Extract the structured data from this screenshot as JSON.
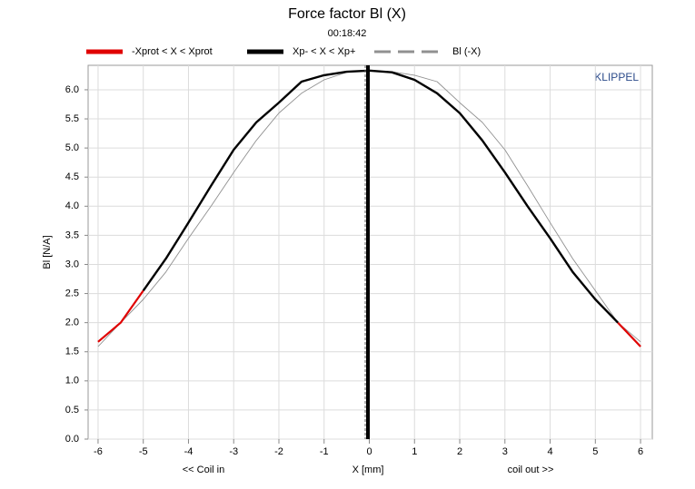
{
  "chart_data": {
    "type": "line",
    "title": "Force factor Bl (X)",
    "subtitle": "00:18:42",
    "watermark": "KLIPPEL",
    "y_label": "Bl [N/A]",
    "x_label": "X [mm]",
    "x_left_note": "<< Coil in",
    "x_right_note": "coil out >>",
    "x": [
      -6,
      -5.5,
      -5,
      -4.5,
      -4,
      -3.5,
      -3,
      -2.5,
      -2,
      -1.5,
      -1,
      -0.5,
      0,
      0.5,
      1,
      1.5,
      2,
      2.5,
      3,
      3.5,
      4,
      4.5,
      5,
      5.5,
      6
    ],
    "series": [
      {
        "name": "-Xprot < X < Xprot",
        "color": "#e00000",
        "width": 2.2,
        "dashed": false,
        "values": [
          1.67,
          2.0,
          2.55,
          null,
          null,
          null,
          null,
          null,
          null,
          null,
          null,
          null,
          null,
          null,
          null,
          null,
          null,
          null,
          null,
          null,
          null,
          null,
          null,
          2.0,
          1.59
        ]
      },
      {
        "name": "Xp- < X < Xp+",
        "color": "#000000",
        "width": 2.4,
        "dashed": false,
        "values": [
          null,
          null,
          2.55,
          3.1,
          3.72,
          4.35,
          4.97,
          5.44,
          5.78,
          6.14,
          6.25,
          6.31,
          6.33,
          6.3,
          6.17,
          5.94,
          5.6,
          5.13,
          4.58,
          4.0,
          3.45,
          2.87,
          2.4,
          2.0,
          null
        ]
      },
      {
        "name": "Bl (-X)",
        "color": "#909090",
        "width": 0.9,
        "dashed": true,
        "values": [
          1.59,
          2.0,
          2.4,
          2.87,
          3.45,
          4.0,
          4.58,
          5.13,
          5.6,
          5.94,
          6.17,
          6.3,
          6.33,
          6.31,
          6.25,
          6.14,
          5.78,
          5.44,
          4.97,
          4.35,
          3.72,
          3.1,
          2.55,
          2.0,
          1.67
        ]
      }
    ],
    "xlim": [
      -6.22,
      6.26
    ],
    "ylim": [
      0,
      6.42
    ],
    "xticks": [
      -6,
      -5,
      -4,
      -3,
      -2,
      -1,
      0,
      1,
      2,
      3,
      4,
      5,
      6
    ],
    "yticks": [
      {
        "value": 0,
        "label": "0.0"
      },
      {
        "value": 0.5,
        "label": "0.5"
      },
      {
        "value": 1,
        "label": "1.0"
      },
      {
        "value": 1.5,
        "label": "1.5"
      },
      {
        "value": 2,
        "label": "2.0"
      },
      {
        "value": 2.5,
        "label": "2.5"
      },
      {
        "value": 3,
        "label": "3.0"
      },
      {
        "value": 3.5,
        "label": "3.5"
      },
      {
        "value": 4,
        "label": "4.0"
      },
      {
        "value": 4.5,
        "label": "4.5"
      },
      {
        "value": 5,
        "label": "5.0"
      },
      {
        "value": 5.5,
        "label": "5.5"
      },
      {
        "value": 6,
        "label": "6.0"
      }
    ],
    "grid": true
  }
}
